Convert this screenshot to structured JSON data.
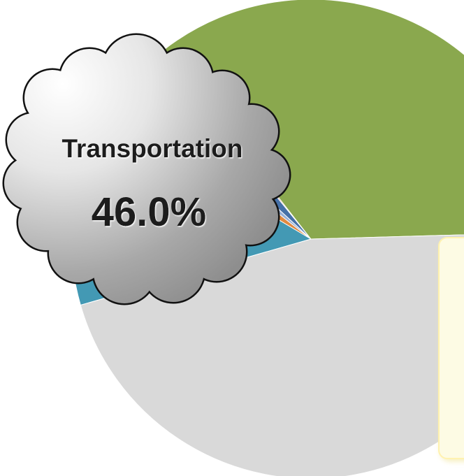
{
  "chart_data": {
    "type": "pie",
    "slices": [
      {
        "value": 13.0,
        "color": "#4399b4"
      },
      {
        "value": 2.0,
        "color": "#e08a41"
      },
      {
        "value": 1.3,
        "color": "#98b0d8"
      },
      {
        "value": 2.3,
        "color": "#4671a8"
      },
      {
        "value": 0.3,
        "color": "#b9503c"
      },
      {
        "value": 35.1,
        "color": "#8aa84e"
      },
      {
        "value": 46.0,
        "color": "#d9d9d9"
      }
    ],
    "annotation": {
      "label": "Transportation",
      "value_label": "46.0%"
    }
  },
  "colors": {
    "side_panel_fill": "#fdfbe4",
    "side_panel_edge": "#fff2b0"
  }
}
